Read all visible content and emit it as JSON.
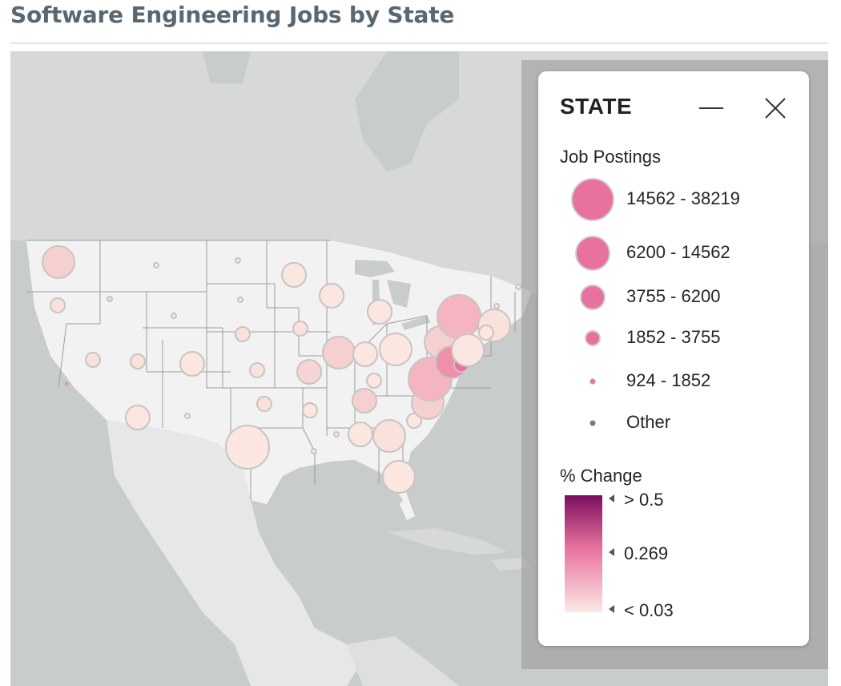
{
  "header": {
    "title": "Software Engineering Jobs by State"
  },
  "legend": {
    "title": "STATE",
    "minimize_icon": "minimize-icon",
    "close_icon": "close-icon",
    "size_title": "Job Postings",
    "size_items": [
      {
        "label": "14562 - 38219"
      },
      {
        "label": "6200 - 14562"
      },
      {
        "label": "3755 - 6200"
      },
      {
        "label": "1852 - 3755"
      },
      {
        "label": "924 - 1852"
      },
      {
        "label": "Other"
      }
    ],
    "color_title": "% Change",
    "color_ticks": {
      "high": "> 0.5",
      "mid": "0.269",
      "low": "< 0.03"
    },
    "colors": {
      "low": "#f9e6e1",
      "mid": "#e8719f",
      "high": "#7b0f5e",
      "size_fill": "#e8719f"
    }
  },
  "map": {
    "markers": [
      {
        "state": "WA",
        "size_class": "3755-6200",
        "change": "low"
      },
      {
        "state": "OR",
        "size_class": "924-1852",
        "change": "low"
      },
      {
        "state": "CA",
        "size_class": "Other",
        "change": "mid"
      },
      {
        "state": "TX",
        "size_class": "14562-38219",
        "change": "low"
      },
      {
        "state": "VA",
        "size_class": "14562-38219",
        "change": "mid"
      },
      {
        "state": "NY",
        "size_class": "14562-38219",
        "change": "mid"
      },
      {
        "state": "MD",
        "size_class": "6200-14562",
        "change": "mid"
      },
      {
        "state": "DC",
        "size_class": "1852-3755",
        "change": "mid"
      },
      {
        "state": "FL",
        "size_class": "3755-6200",
        "change": "low"
      }
    ]
  }
}
